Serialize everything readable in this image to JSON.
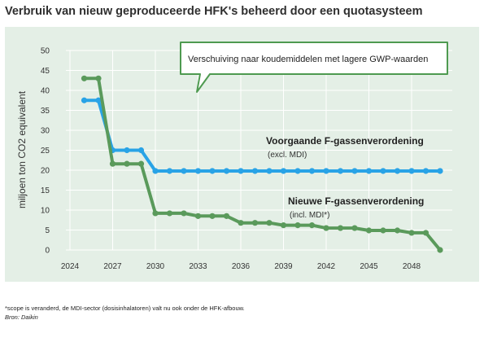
{
  "title": "Verbruik van nieuw geproduceerde HFK's beheerd door een quotasysteem",
  "footnote": "*scope is veranderd, de MDI-sector (dosisinhalatoren) valt nu ook onder de HFK-afbouw.",
  "source": "Bron: Daikin",
  "colors": {
    "panel_bg": "#e4efe6",
    "blue": "#29a3e6",
    "green": "#5a9a5b",
    "callout_border": "#4e9a50"
  },
  "chart_data": {
    "type": "line",
    "ylabel": "miljoen ton CO2 equivalent",
    "ylim": [
      0,
      50
    ],
    "yticks": [
      0,
      5,
      10,
      15,
      20,
      25,
      30,
      35,
      40,
      45,
      50
    ],
    "xlim": [
      2024,
      2050
    ],
    "xticks": [
      2024,
      2027,
      2030,
      2033,
      2036,
      2039,
      2042,
      2045,
      2048
    ],
    "grid": true,
    "annotation": "Verschuiving naar koudemiddelen met lagere GWP-waarden",
    "series": [
      {
        "name": "Voorgaande F-gassenverordening",
        "subtitle": "(excl. MDI)",
        "color": "#29a3e6",
        "x": [
          2025,
          2026,
          2027,
          2028,
          2029,
          2030,
          2031,
          2032,
          2033,
          2034,
          2035,
          2036,
          2037,
          2038,
          2039,
          2040,
          2041,
          2042,
          2043,
          2044,
          2045,
          2046,
          2047,
          2048,
          2049,
          2050
        ],
        "values": [
          37.5,
          37.5,
          25,
          25,
          25,
          19.8,
          19.8,
          19.8,
          19.8,
          19.8,
          19.8,
          19.8,
          19.8,
          19.8,
          19.8,
          19.8,
          19.8,
          19.8,
          19.8,
          19.8,
          19.8,
          19.8,
          19.8,
          19.8,
          19.8,
          19.8
        ]
      },
      {
        "name": "Nieuwe F-gassenverordening",
        "subtitle": "(incl. MDI*)",
        "color": "#5a9a5b",
        "x": [
          2025,
          2026,
          2027,
          2028,
          2029,
          2030,
          2031,
          2032,
          2033,
          2034,
          2035,
          2036,
          2037,
          2038,
          2039,
          2040,
          2041,
          2042,
          2043,
          2044,
          2045,
          2046,
          2047,
          2048,
          2049,
          2050
        ],
        "values": [
          43,
          43,
          21.6,
          21.6,
          21.6,
          9.2,
          9.2,
          9.2,
          8.5,
          8.5,
          8.5,
          6.8,
          6.8,
          6.8,
          6.2,
          6.2,
          6.2,
          5.5,
          5.5,
          5.5,
          4.9,
          4.9,
          4.9,
          4.3,
          4.3,
          0
        ]
      }
    ]
  }
}
